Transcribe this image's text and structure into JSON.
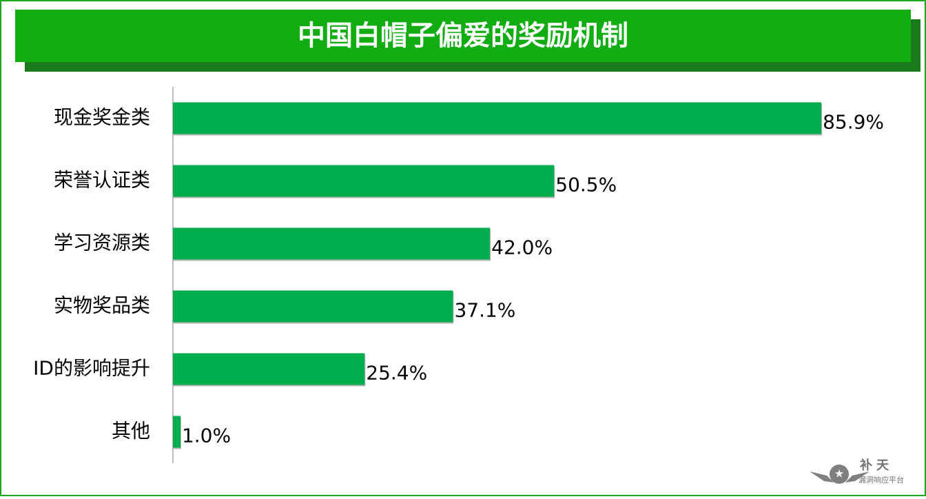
{
  "chart_data": {
    "type": "bar",
    "orientation": "horizontal",
    "title": "中国白帽子偏爱的奖励机制",
    "categories": [
      "现金奖金类",
      "荣誉认证类",
      "学习资源类",
      "实物奖品类",
      "ID的影响提升",
      "其他"
    ],
    "values": [
      85.9,
      50.5,
      42.0,
      37.1,
      25.4,
      1.0
    ],
    "value_labels": [
      "85.9%",
      "50.5%",
      "42.0%",
      "37.1%",
      "25.4%",
      "1.0%"
    ],
    "color": "#00ad4e",
    "xlim": [
      0,
      90
    ]
  },
  "watermark": {
    "name": "补天",
    "subtitle": "漏洞响应平台"
  }
}
